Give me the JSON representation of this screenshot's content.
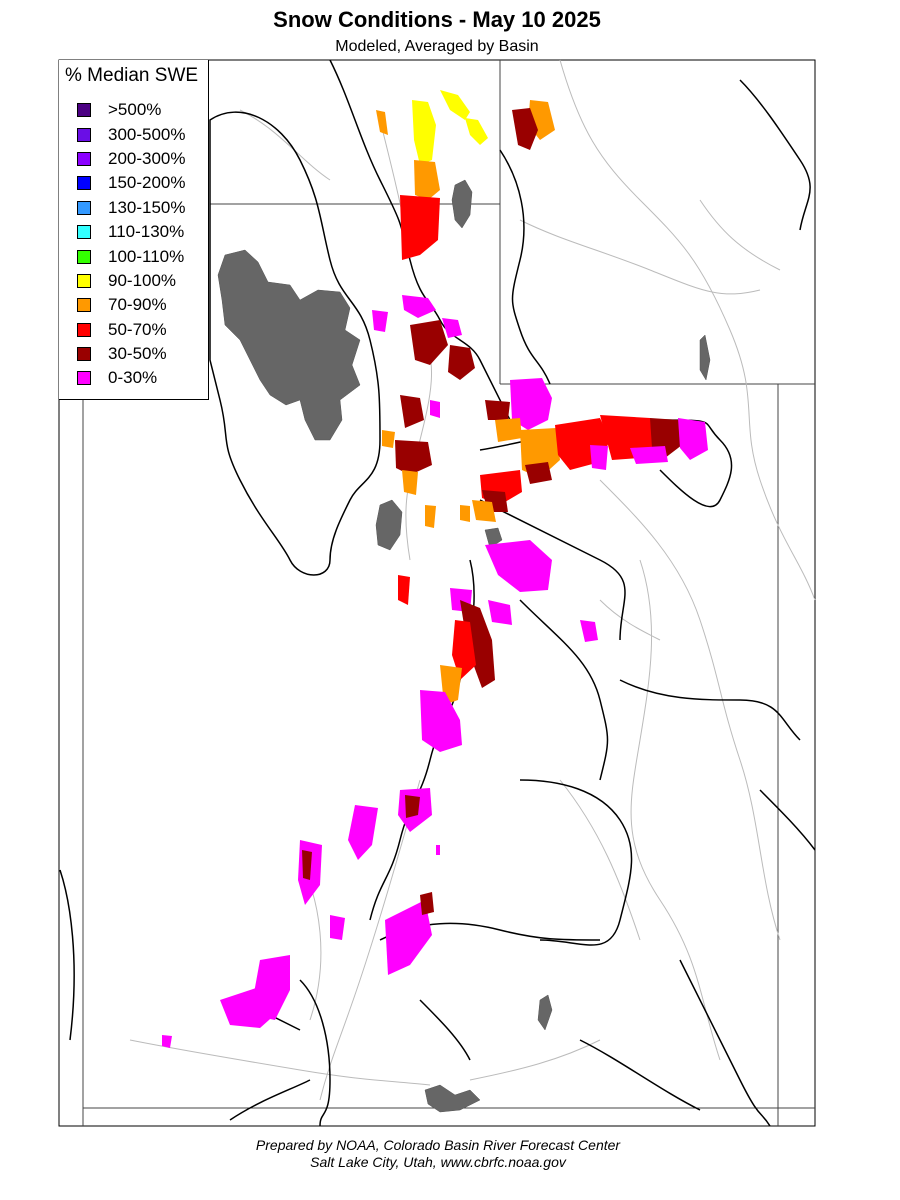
{
  "header": {
    "title": "Snow Conditions - May 10 2025",
    "subtitle": "Modeled, Averaged by Basin"
  },
  "legend": {
    "title": "% Median SWE",
    "items": [
      {
        "label": ">500%",
        "color": "#4b0082"
      },
      {
        "label": "300-500%",
        "color": "#6a0ee6"
      },
      {
        "label": "200-300%",
        "color": "#8b00ff"
      },
      {
        "label": "150-200%",
        "color": "#0000ff"
      },
      {
        "label": "130-150%",
        "color": "#3399ff"
      },
      {
        "label": "110-130%",
        "color": "#33ffff"
      },
      {
        "label": "100-110%",
        "color": "#33ff00"
      },
      {
        "label": "90-100%",
        "color": "#ffff00"
      },
      {
        "label": "70-90%",
        "color": "#ff9900"
      },
      {
        "label": "50-70%",
        "color": "#ff0000"
      },
      {
        "label": "30-50%",
        "color": "#990000"
      },
      {
        "label": "0-30%",
        "color": "#ff00ff"
      }
    ]
  },
  "map": {
    "water_color": "#666666",
    "basin_line_color": "#000000",
    "river_color": "#bbbbbb"
  },
  "credits": {
    "line1": "Prepared by NOAA, Colorado Basin River Forecast Center",
    "line2": "Salt Lake City, Utah, www.cbrfc.noaa.gov"
  }
}
